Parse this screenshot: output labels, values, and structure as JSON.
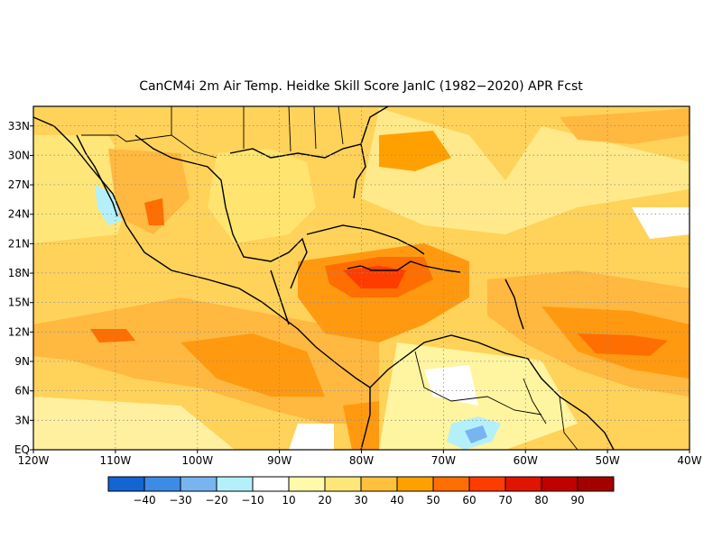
{
  "title": "CanCM4i  2m Air Temp. Heidke Skill Score JanIC (1982−2020) APR Fcst",
  "map": {
    "lat_labels": [
      "EQ",
      "3N",
      "6N",
      "9N",
      "12N",
      "15N",
      "18N",
      "21N",
      "24N",
      "27N",
      "30N",
      "33N"
    ],
    "lon_labels": [
      "120W",
      "110W",
      "100W",
      "90W",
      "80W",
      "70W",
      "60W",
      "50W",
      "40W"
    ],
    "lon_range": [
      -120,
      -40
    ],
    "lat_range": [
      0,
      35
    ],
    "grid": "dotted"
  },
  "colorbar": {
    "colors": [
      "#1464d2",
      "#3c8ce6",
      "#78b4f0",
      "#b4f0fa",
      "#ffffff",
      "#fffaaa",
      "#ffe678",
      "#ffc03c",
      "#ffa000",
      "#ff6e00",
      "#ff3c00",
      "#e11400",
      "#c00000",
      "#a50000"
    ],
    "labels": [
      "−40",
      "−30",
      "−20",
      "−10",
      "10",
      "20",
      "30",
      "40",
      "50",
      "60",
      "70",
      "80",
      "90"
    ]
  }
}
